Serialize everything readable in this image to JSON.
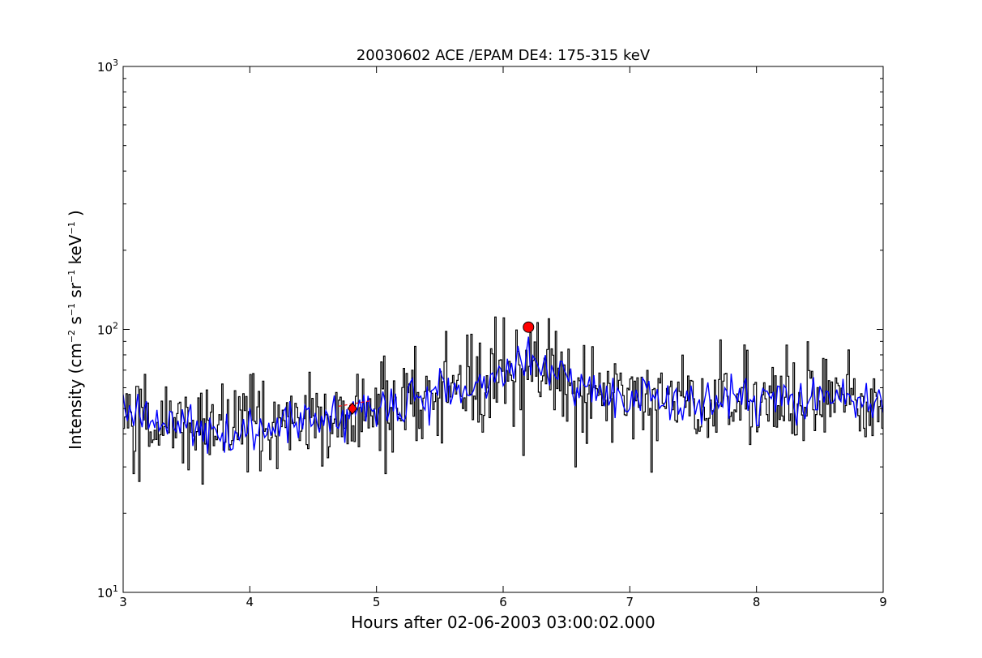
{
  "chart_data": {
    "type": "line",
    "title": "20030602 ACE /EPAM DE4: 175-315 keV",
    "xlabel": "Hours after 02-06-2003 03:00:02.000",
    "ylabel": {
      "text": "Intensity (cm",
      "exp1": "−2",
      "s": " s",
      "exp2": "−1",
      "sr": " sr",
      "exp3": "−1",
      "kev": " keV",
      "exp4": "−1",
      "close": " )"
    },
    "xlim": [
      3,
      9
    ],
    "ylim": [
      10,
      1000
    ],
    "yscale": "log",
    "grid": false,
    "x_ticks": [
      3,
      4,
      5,
      6,
      7,
      8,
      9
    ],
    "x_tick_labels": [
      "3",
      "4",
      "5",
      "6",
      "7",
      "8",
      "9"
    ],
    "y_ticks": [
      {
        "value": 10,
        "base": "10",
        "exp": "1"
      },
      {
        "value": 100,
        "base": "10",
        "exp": "2"
      },
      {
        "value": 1000,
        "base": "10",
        "exp": "3"
      }
    ],
    "series": [
      {
        "key": "raw",
        "color": "#000000",
        "style": "steps",
        "keypoints": [
          [
            3.0,
            47
          ],
          [
            3.3,
            44
          ],
          [
            3.6,
            43
          ],
          [
            3.9,
            40
          ],
          [
            4.2,
            42
          ],
          [
            4.5,
            46
          ],
          [
            4.7,
            45
          ],
          [
            4.9,
            48
          ],
          [
            5.1,
            50
          ],
          [
            5.3,
            53
          ],
          [
            5.5,
            56
          ],
          [
            5.7,
            60
          ],
          [
            5.9,
            66
          ],
          [
            6.1,
            74
          ],
          [
            6.3,
            76
          ],
          [
            6.45,
            70
          ],
          [
            6.6,
            62
          ],
          [
            6.8,
            58
          ],
          [
            7.0,
            55
          ],
          [
            7.5,
            53
          ],
          [
            8.0,
            54
          ],
          [
            8.5,
            54
          ],
          [
            9.0,
            53
          ]
        ]
      },
      {
        "key": "smoothed",
        "color": "#0000ff",
        "style": "line",
        "keypoints": [
          [
            3.0,
            47
          ],
          [
            3.3,
            44
          ],
          [
            3.6,
            43
          ],
          [
            3.9,
            40
          ],
          [
            4.2,
            42
          ],
          [
            4.5,
            46
          ],
          [
            4.7,
            45
          ],
          [
            4.9,
            48
          ],
          [
            5.1,
            50
          ],
          [
            5.3,
            53
          ],
          [
            5.5,
            56
          ],
          [
            5.7,
            60
          ],
          [
            5.9,
            66
          ],
          [
            6.1,
            74
          ],
          [
            6.3,
            76
          ],
          [
            6.45,
            70
          ],
          [
            6.6,
            62
          ],
          [
            6.8,
            58
          ],
          [
            7.0,
            55
          ],
          [
            7.5,
            53
          ],
          [
            8.0,
            54
          ],
          [
            8.5,
            54
          ],
          [
            9.0,
            53
          ]
        ]
      }
    ],
    "markers": [
      {
        "x": 4.81,
        "y": 50,
        "shape": "diamond",
        "color": "#ff0000"
      },
      {
        "x": 6.2,
        "y": 102,
        "shape": "circle",
        "color": "#ff0000"
      }
    ],
    "fit_segment": {
      "x": [
        4.7,
        4.95
      ],
      "y": [
        51,
        53.5
      ],
      "color": "#ff0000"
    }
  }
}
